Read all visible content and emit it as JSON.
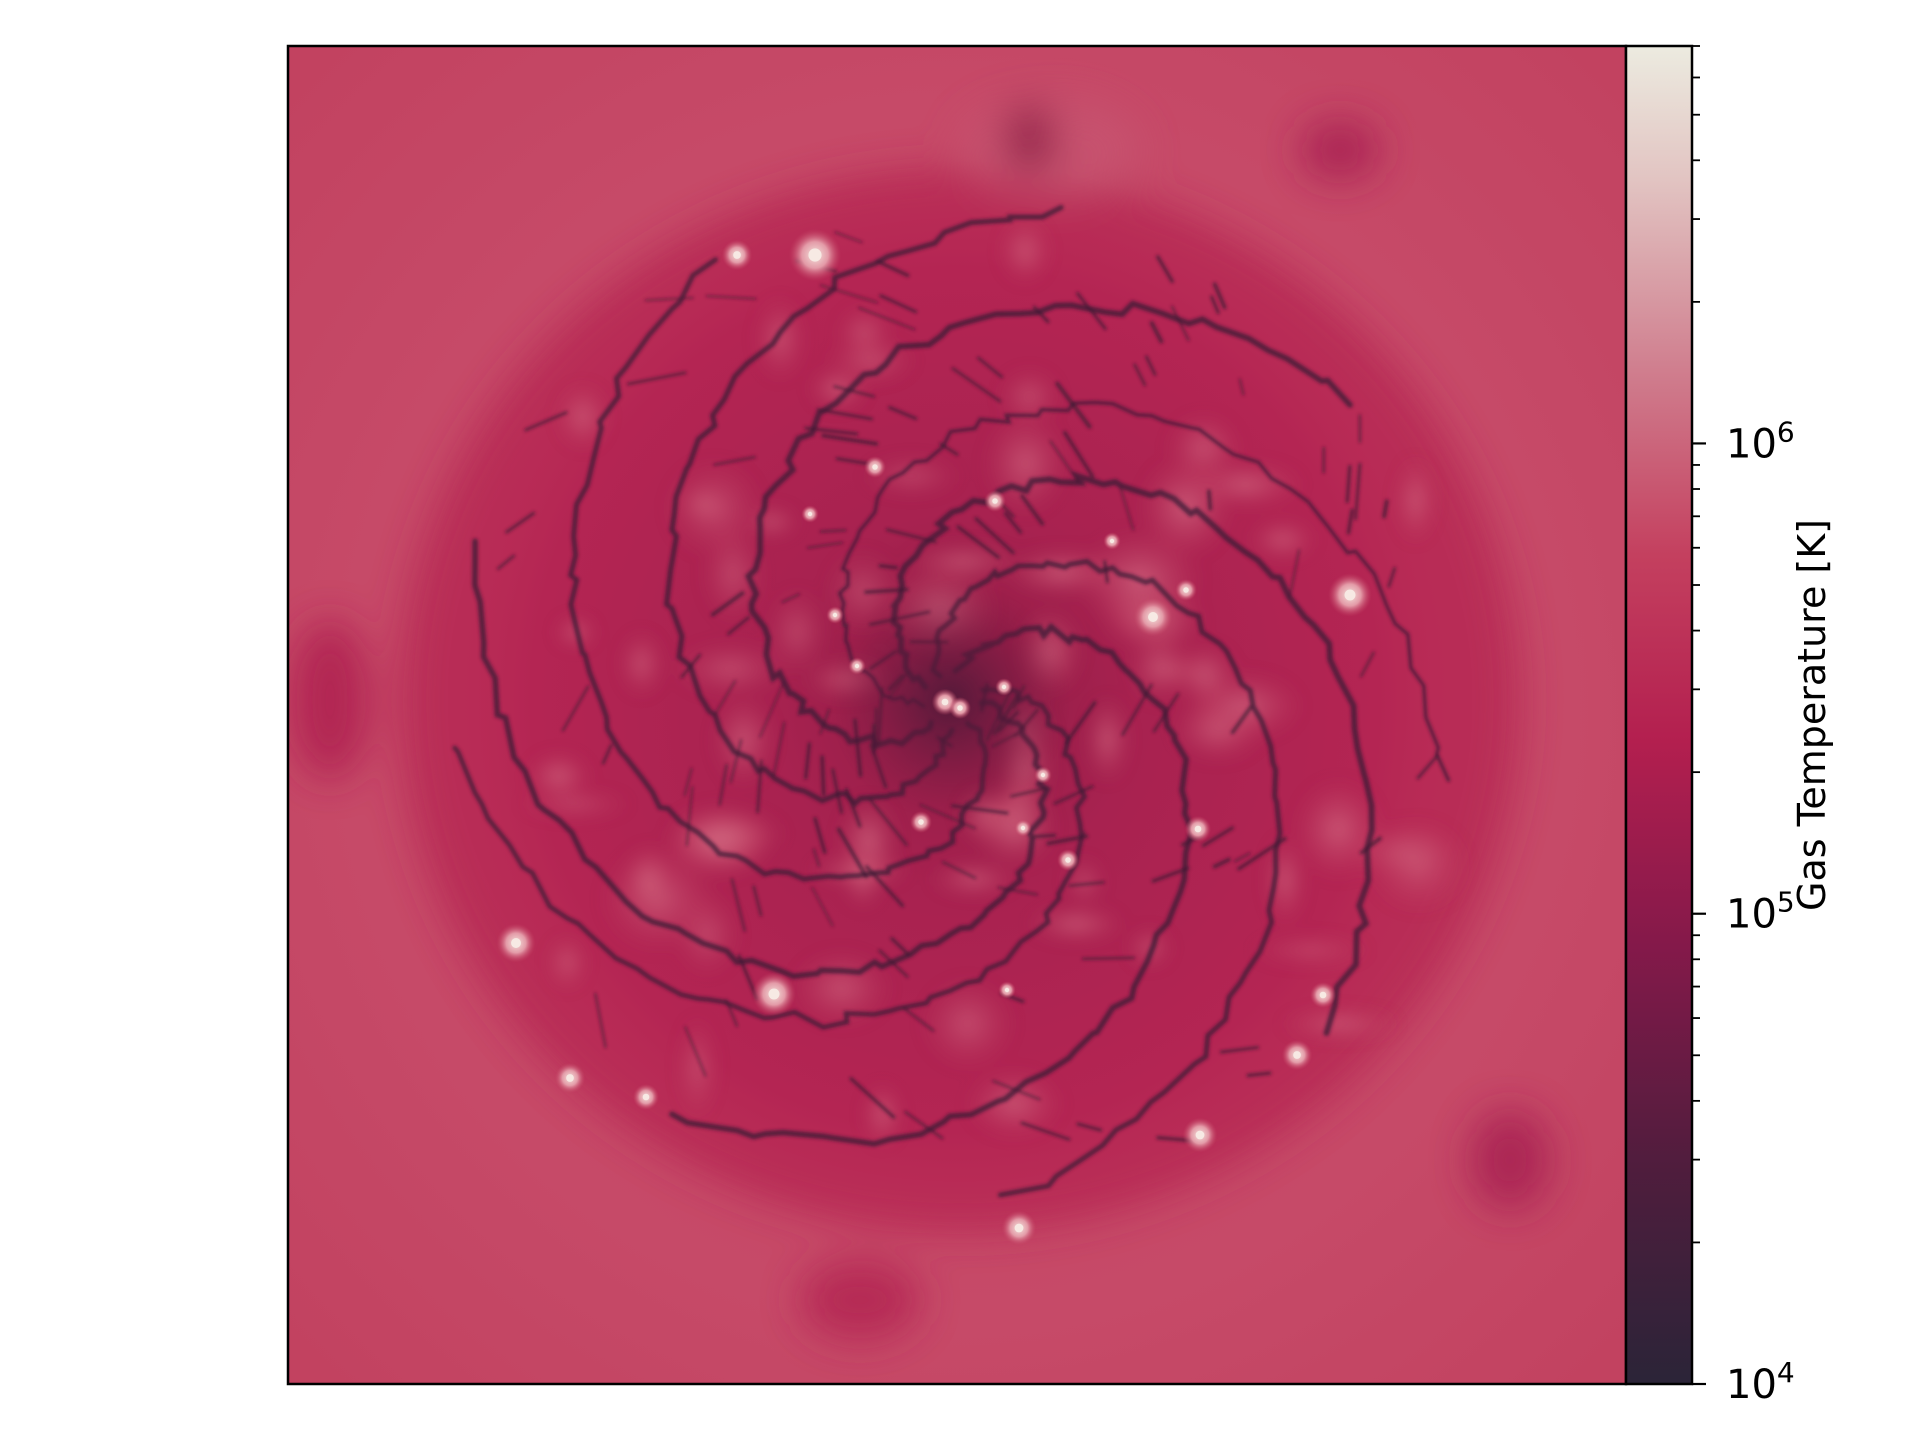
{
  "figure": {
    "colorbar": {
      "label": "Gas Temperature [K]",
      "scale": "log",
      "range": [
        10000,
        7000000
      ],
      "colormap": [
        "#2b2438",
        "#541c3c",
        "#8c1a46",
        "#b92150",
        "#c9446a",
        "#d98f9d",
        "#e8d5cf",
        "#ecebe0"
      ],
      "ticks": [
        {
          "base": "10",
          "exp": "4",
          "value": 10000
        },
        {
          "base": "10",
          "exp": "5",
          "value": 100000
        },
        {
          "base": "10",
          "exp": "6",
          "value": 1000000
        }
      ]
    },
    "image": {
      "subject": "spiral galaxy gas temperature map",
      "background_color": "#c44463",
      "disk_color": "#b02451",
      "filament_color": "#3a1a34",
      "hotspot_color": "#f1dcd6"
    }
  }
}
